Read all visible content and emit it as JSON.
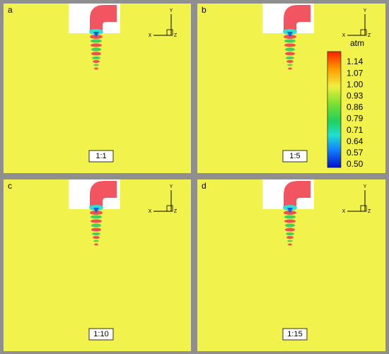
{
  "panels": [
    {
      "letter": "a",
      "ratio": "1:1"
    },
    {
      "letter": "b",
      "ratio": "1:5"
    },
    {
      "letter": "c",
      "ratio": "1:10"
    },
    {
      "letter": "d",
      "ratio": "1:15"
    }
  ],
  "triad": {
    "x": "X",
    "y": "Y",
    "z": "Z"
  },
  "colorbar": {
    "unit": "atm",
    "ticks": [
      "1.14",
      "1.07",
      "1.00",
      "0.93",
      "0.86",
      "0.79",
      "0.71",
      "0.64",
      "0.57",
      "0.50"
    ]
  }
}
